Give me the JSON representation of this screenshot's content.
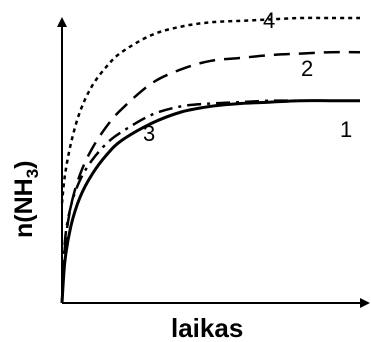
{
  "chart_data": {
    "type": "line",
    "title": "",
    "xlabel": "laikas",
    "ylabel_main": "n(NH",
    "ylabel_sub": "3",
    "ylabel_close": ")",
    "xlim": [
      0,
      10
    ],
    "ylim": [
      0,
      10
    ],
    "grid": false,
    "legend": "none",
    "series": [
      {
        "name": "1",
        "style": "solid",
        "x": [
          0,
          0.1,
          0.3,
          0.6,
          1.0,
          1.5,
          2.0,
          3.0,
          4.0,
          5.0,
          6.0,
          7.0,
          8.0,
          9.0,
          10.0
        ],
        "y": [
          0,
          1.5,
          2.7,
          3.7,
          4.5,
          5.2,
          5.7,
          6.3,
          6.7,
          6.9,
          7.0,
          7.05,
          7.1,
          7.1,
          7.1
        ]
      },
      {
        "name": "2",
        "style": "dashed",
        "x": [
          0,
          0.1,
          0.3,
          0.6,
          1.0,
          1.5,
          2.0,
          3.0,
          4.0,
          5.0,
          6.0,
          7.0,
          8.0,
          9.0,
          10.0
        ],
        "y": [
          0,
          2.0,
          3.4,
          4.5,
          5.4,
          6.2,
          6.8,
          7.7,
          8.2,
          8.5,
          8.6,
          8.7,
          8.75,
          8.8,
          8.8
        ]
      },
      {
        "name": "3",
        "style": "dashdot",
        "x": [
          0,
          0.1,
          0.3,
          0.6,
          1.0,
          1.5,
          2.0,
          3.0,
          4.0,
          5.0,
          6.0,
          7.0,
          8.0,
          9.0,
          10.0
        ],
        "y": [
          0,
          2.2,
          3.4,
          4.3,
          5.0,
          5.6,
          6.0,
          6.6,
          6.9,
          7.0,
          7.05,
          7.1,
          7.1,
          7.1,
          7.1
        ]
      },
      {
        "name": "4",
        "style": "dotted",
        "x": [
          0,
          0.1,
          0.3,
          0.6,
          1.0,
          1.5,
          2.0,
          3.0,
          4.0,
          5.0,
          6.0,
          7.0,
          8.0,
          9.0,
          10.0
        ],
        "y": [
          3.5,
          4.5,
          5.6,
          6.7,
          7.6,
          8.3,
          8.8,
          9.4,
          9.7,
          9.85,
          9.9,
          9.95,
          10.0,
          10.0,
          10.0
        ]
      }
    ]
  }
}
